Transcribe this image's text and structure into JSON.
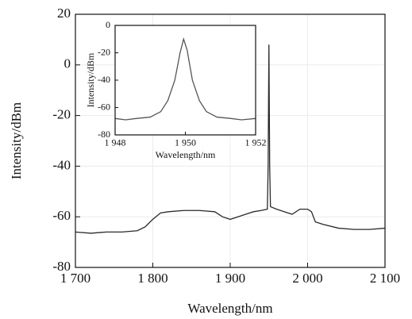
{
  "chart_data": [
    {
      "type": "line",
      "x_label": "Wavelength/nm",
      "y_label": "Intensity/dBm",
      "xlim": [
        1700,
        2100
      ],
      "ylim": [
        -80,
        20
      ],
      "xticks": [
        {
          "value": 1700,
          "label": "1 700"
        },
        {
          "value": 1800,
          "label": "1 800"
        },
        {
          "value": 1900,
          "label": "1 900"
        },
        {
          "value": 2000,
          "label": "2 000"
        },
        {
          "value": 2100,
          "label": "2 100"
        }
      ],
      "yticks": [
        -80,
        -60,
        -40,
        -20,
        0,
        20
      ],
      "grid": true,
      "series": [
        {
          "color": "#2a2a2a",
          "x": [
            1700,
            1720,
            1740,
            1760,
            1780,
            1790,
            1800,
            1810,
            1820,
            1840,
            1860,
            1880,
            1890,
            1900,
            1910,
            1920,
            1930,
            1940,
            1948,
            1949,
            1950,
            1951,
            1952,
            1960,
            1970,
            1980,
            1990,
            2000,
            2005,
            2010,
            2020,
            2040,
            2060,
            2080,
            2100
          ],
          "values": [
            -66,
            -66.5,
            -66,
            -66,
            -65.5,
            -64,
            -61,
            -58.5,
            -58,
            -57.5,
            -57.5,
            -58,
            -60,
            -61,
            -60,
            -59,
            -58,
            -57.5,
            -57,
            -40,
            8,
            -40,
            -56,
            -57,
            -58,
            -59,
            -57,
            -57,
            -58,
            -62,
            -63,
            -64.5,
            -65,
            -65,
            -64.5
          ]
        }
      ]
    },
    {
      "type": "line",
      "x_label": "Wavelength/nm",
      "y_label": "Intensity/dBm",
      "xlim": [
        1948,
        1952
      ],
      "ylim": [
        -80,
        0
      ],
      "xticks": [
        {
          "value": 1948,
          "label": "1 948"
        },
        {
          "value": 1950,
          "label": "1 950"
        },
        {
          "value": 1952,
          "label": "1 952"
        }
      ],
      "yticks": [
        -80,
        -60,
        -40,
        -20,
        0
      ],
      "grid": false,
      "series": [
        {
          "color": "#555555",
          "x": [
            1948,
            1948.3,
            1948.6,
            1949,
            1949.3,
            1949.5,
            1949.7,
            1949.85,
            1949.95,
            1950.05,
            1950.2,
            1950.4,
            1950.6,
            1950.9,
            1951.3,
            1951.6,
            1952
          ],
          "values": [
            -68,
            -69,
            -68,
            -67,
            -63,
            -55,
            -40,
            -20,
            -10,
            -18,
            -40,
            -55,
            -63,
            -67,
            -68,
            -69,
            -68
          ]
        }
      ]
    }
  ]
}
